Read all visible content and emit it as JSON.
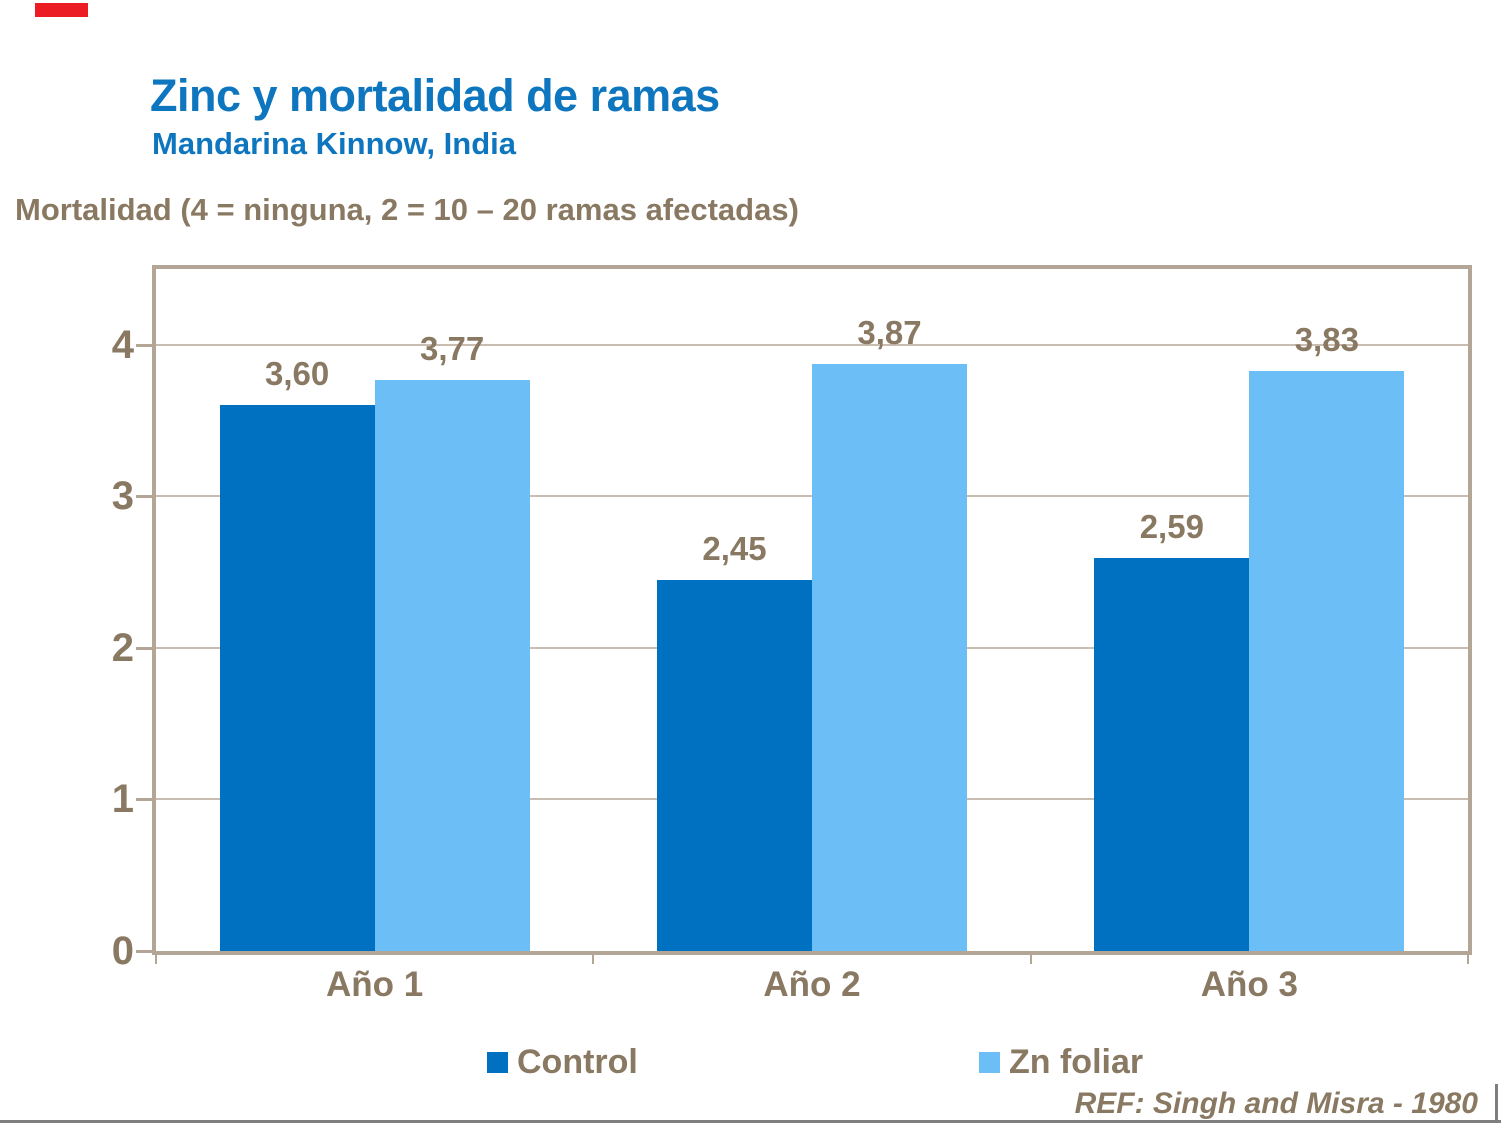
{
  "reference": "REF: Singh and Misra - 1980",
  "colors": {
    "title": "#0D76BE",
    "text_brown": "#8A7962",
    "frame": "#B4A696",
    "grid": "#C9BDB1",
    "footer_line": "#7E7E7E",
    "corner_mark": "#EC1C24",
    "control_bar": "#0070C0",
    "zn_foliar_bar": "#6CBEF7"
  },
  "chart_data": {
    "type": "bar",
    "title": "Zinc y mortalidad de ramas",
    "subtitle": "Mandarina Kinnow, India",
    "ylabel": "Mortalidad (4 = ninguna, 2 = 10 – 20 ramas afectadas)",
    "categories": [
      "Año 1",
      "Año 2",
      "Año 3"
    ],
    "series": [
      {
        "name": "Control",
        "color": "#0070C0",
        "values": [
          3.6,
          2.45,
          2.59
        ],
        "labels": [
          "3,60",
          "2,45",
          "2,59"
        ]
      },
      {
        "name": "Zn foliar",
        "color": "#6CBEF7",
        "values": [
          3.77,
          3.87,
          3.83
        ],
        "labels": [
          "3,77",
          "3,87",
          "3,83"
        ]
      }
    ],
    "ylim": [
      0,
      4.5
    ],
    "yticks": [
      0,
      1,
      2,
      3,
      4
    ],
    "grid": true,
    "legend_position": "bottom",
    "decimal_separator": ","
  }
}
